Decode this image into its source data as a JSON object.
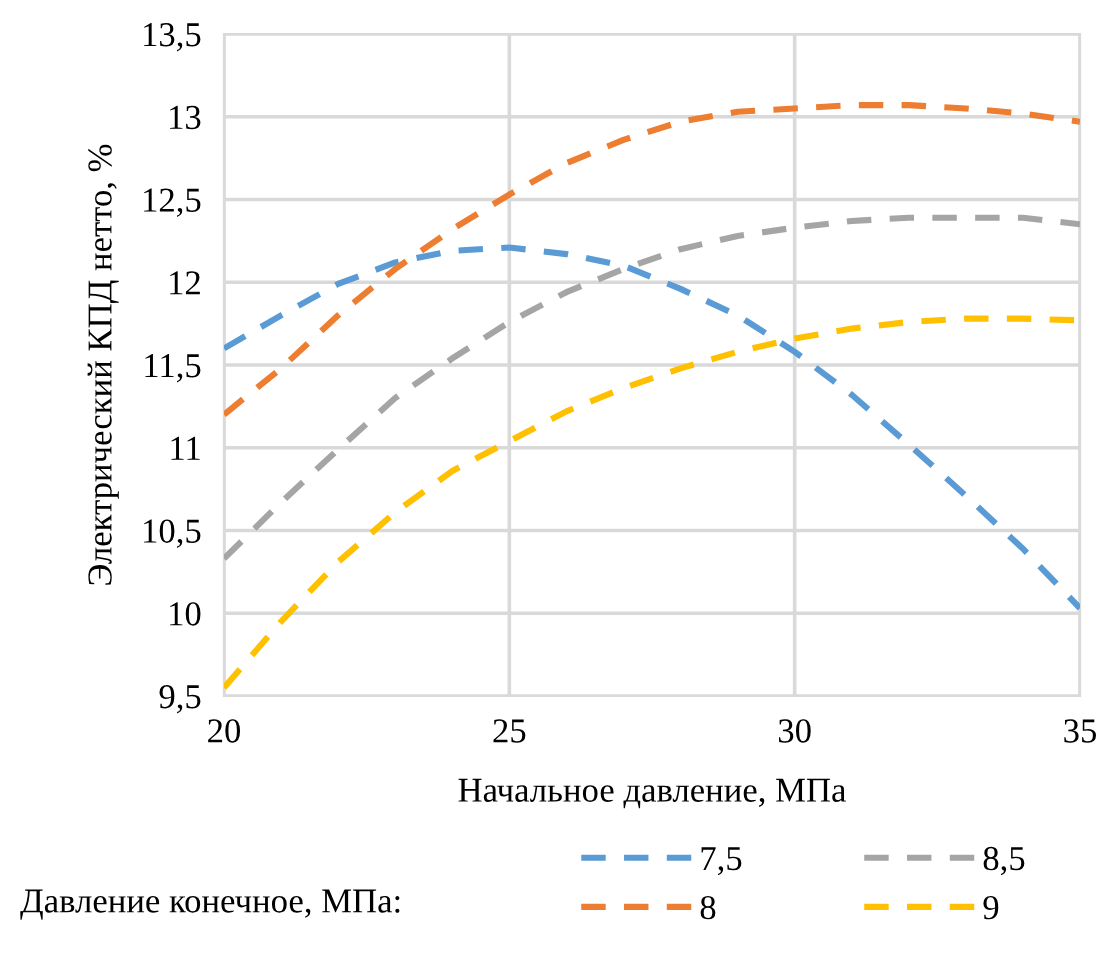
{
  "chart_data": {
    "type": "line",
    "xlabel": "Начальное давление, МПа",
    "ylabel": "Электрический КПД нетто, %",
    "legend_title": "Давление конечное, МПа:",
    "x": [
      20,
      21,
      22,
      23,
      24,
      25,
      26,
      27,
      28,
      29,
      30,
      31,
      32,
      33,
      34,
      35
    ],
    "series": [
      {
        "name": "7,5",
        "color": "#5b9bd5",
        "values": [
          11.6,
          11.8,
          11.99,
          12.12,
          12.19,
          12.21,
          12.17,
          12.1,
          11.96,
          11.8,
          11.58,
          11.32,
          11.02,
          10.71,
          10.39,
          10.03
        ]
      },
      {
        "name": "8",
        "color": "#ed7d31",
        "values": [
          11.2,
          11.48,
          11.8,
          12.08,
          12.32,
          12.53,
          12.72,
          12.86,
          12.97,
          13.03,
          13.05,
          13.07,
          13.07,
          13.05,
          13.02,
          12.97
        ]
      },
      {
        "name": "8,5",
        "color": "#a5a5a5",
        "values": [
          10.33,
          10.67,
          10.99,
          11.3,
          11.54,
          11.76,
          11.94,
          12.08,
          12.2,
          12.28,
          12.33,
          12.37,
          12.39,
          12.39,
          12.39,
          12.35
        ]
      },
      {
        "name": "9",
        "color": "#ffc000",
        "values": [
          9.55,
          9.95,
          10.31,
          10.61,
          10.86,
          11.04,
          11.22,
          11.36,
          11.48,
          11.58,
          11.66,
          11.72,
          11.76,
          11.78,
          11.78,
          11.77
        ]
      }
    ],
    "xlim": [
      20,
      35
    ],
    "xticks": [
      20,
      25,
      30,
      35
    ],
    "ylim": [
      9.5,
      13.5
    ],
    "yticks": [
      {
        "value": 9.5,
        "label": "9,5"
      },
      10,
      {
        "value": 10.5,
        "label": "10,5"
      },
      11,
      {
        "value": 11.5,
        "label": "11,5"
      },
      12,
      {
        "value": 12.5,
        "label": "12,5"
      },
      13,
      {
        "value": 13.5,
        "label": "13,5"
      }
    ],
    "grid": true,
    "legend": "bottom",
    "marker": "none",
    "line_style": "dashed"
  }
}
